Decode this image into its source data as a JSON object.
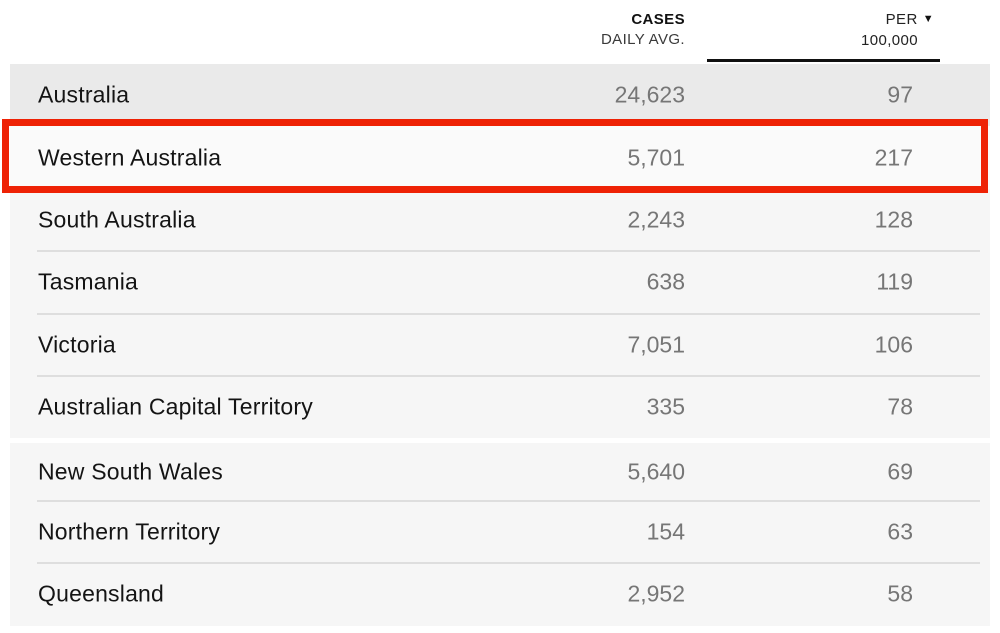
{
  "table": {
    "sort_icon": "▼",
    "columns": [
      {
        "label_top": "CASES",
        "label_bottom": "DAILY AVG.",
        "sorted": false
      },
      {
        "label_top": "PER",
        "label_bottom": "100,000",
        "sorted": true
      }
    ],
    "rows": [
      {
        "region": "Australia",
        "cases": "24,623",
        "per_100k": "97",
        "is_total": true
      },
      {
        "region": "Western Australia",
        "cases": "5,701",
        "per_100k": "217",
        "highlighted": true
      },
      {
        "region": "South Australia",
        "cases": "2,243",
        "per_100k": "128"
      },
      {
        "region": "Tasmania",
        "cases": "638",
        "per_100k": "119"
      },
      {
        "region": "Victoria",
        "cases": "7,051",
        "per_100k": "106"
      },
      {
        "region": "Australian Capital Territory",
        "cases": "335",
        "per_100k": "78"
      },
      {
        "region": "New South Wales",
        "cases": "5,640",
        "per_100k": "69"
      },
      {
        "region": "Northern Territory",
        "cases": "154",
        "per_100k": "63"
      },
      {
        "region": "Queensland",
        "cases": "2,952",
        "per_100k": "58"
      }
    ]
  },
  "annotation": {
    "type": "highlight-box",
    "target_row": "Western Australia",
    "color": "#ee2205"
  },
  "colors": {
    "table_background": "#f6f6f6",
    "total_row_background": "#eaeaea",
    "value_text": "#767676",
    "region_text": "#141414",
    "sorted_underline": "#111111"
  }
}
